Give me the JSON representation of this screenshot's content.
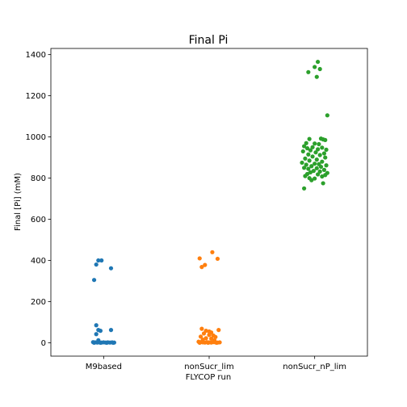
{
  "chart_data": {
    "type": "scatter",
    "title": "Final Pi",
    "xlabel": "FLYCOP run",
    "ylabel": "Final [Pi] (mM)",
    "categories": [
      "M9based",
      "nonSucr_lim",
      "nonSucr_nP_lim"
    ],
    "ylim": [
      -65,
      1430
    ],
    "yticks": [
      0,
      200,
      400,
      600,
      800,
      1000,
      1200,
      1400
    ],
    "grid": false,
    "legend": "none",
    "series": [
      {
        "color": "#1f77b4",
        "points": [
          [
            -0.05,
            400
          ],
          [
            -0.02,
            400
          ],
          [
            -0.07,
            380
          ],
          [
            0.07,
            362
          ],
          [
            -0.09,
            305
          ],
          [
            -0.07,
            85
          ],
          [
            -0.05,
            62
          ],
          [
            -0.03,
            58
          ],
          [
            0.07,
            62
          ],
          [
            -0.07,
            42
          ],
          [
            -0.05,
            12
          ],
          [
            -0.1,
            3
          ],
          [
            -0.08,
            2
          ],
          [
            -0.06,
            1
          ],
          [
            -0.04,
            2
          ],
          [
            -0.02,
            1
          ],
          [
            0.0,
            2
          ],
          [
            0.02,
            1
          ],
          [
            0.04,
            2
          ],
          [
            0.06,
            1
          ],
          [
            0.08,
            2
          ],
          [
            0.1,
            1
          ],
          [
            -0.09,
            0
          ],
          [
            -0.03,
            0
          ],
          [
            0.03,
            0
          ],
          [
            0.09,
            0
          ]
        ]
      },
      {
        "color": "#ff7f0e",
        "points": [
          [
            0.03,
            440
          ],
          [
            -0.09,
            410
          ],
          [
            0.08,
            408
          ],
          [
            -0.04,
            378
          ],
          [
            -0.07,
            368
          ],
          [
            -0.07,
            68
          ],
          [
            -0.03,
            58
          ],
          [
            0.0,
            55
          ],
          [
            0.02,
            50
          ],
          [
            0.09,
            62
          ],
          [
            -0.05,
            45
          ],
          [
            0.0,
            38
          ],
          [
            0.04,
            35
          ],
          [
            -0.08,
            30
          ],
          [
            0.06,
            28
          ],
          [
            -0.03,
            22
          ],
          [
            0.02,
            20
          ],
          [
            -0.06,
            15
          ],
          [
            0.05,
            12
          ],
          [
            -0.1,
            5
          ],
          [
            -0.08,
            3
          ],
          [
            -0.06,
            2
          ],
          [
            -0.04,
            1
          ],
          [
            -0.02,
            3
          ],
          [
            0.0,
            2
          ],
          [
            0.02,
            1
          ],
          [
            0.04,
            3
          ],
          [
            0.06,
            2
          ],
          [
            0.08,
            1
          ],
          [
            0.1,
            2
          ],
          [
            -0.09,
            0
          ],
          [
            -0.01,
            0
          ],
          [
            0.07,
            0
          ]
        ]
      },
      {
        "color": "#2ca02c",
        "points": [
          [
            0.03,
            1365
          ],
          [
            0.0,
            1340
          ],
          [
            -0.06,
            1315
          ],
          [
            0.05,
            1330
          ],
          [
            0.02,
            1292
          ],
          [
            0.12,
            1105
          ],
          [
            -0.05,
            990
          ],
          [
            0.06,
            992
          ],
          [
            0.08,
            988
          ],
          [
            0.1,
            985
          ],
          [
            -0.08,
            970
          ],
          [
            0.0,
            968
          ],
          [
            0.04,
            965
          ],
          [
            -0.1,
            955
          ],
          [
            -0.02,
            950
          ],
          [
            0.07,
            948
          ],
          [
            -0.07,
            945
          ],
          [
            0.03,
            940
          ],
          [
            0.11,
            938
          ],
          [
            -0.04,
            935
          ],
          [
            -0.11,
            930
          ],
          [
            0.01,
            925
          ],
          [
            0.09,
            920
          ],
          [
            -0.06,
            915
          ],
          [
            0.05,
            912
          ],
          [
            -0.02,
            905
          ],
          [
            0.1,
            900
          ],
          [
            -0.09,
            895
          ],
          [
            0.02,
            890
          ],
          [
            -0.05,
            885
          ],
          [
            0.07,
            880
          ],
          [
            -0.12,
            875
          ],
          [
            0.0,
            870
          ],
          [
            0.04,
            868
          ],
          [
            -0.08,
            865
          ],
          [
            0.11,
            862
          ],
          [
            -0.03,
            858
          ],
          [
            0.06,
            855
          ],
          [
            -0.1,
            850
          ],
          [
            0.02,
            848
          ],
          [
            -0.06,
            845
          ],
          [
            0.09,
            840
          ],
          [
            -0.01,
            835
          ],
          [
            0.05,
            832
          ],
          [
            -0.04,
            828
          ],
          [
            0.12,
            825
          ],
          [
            -0.07,
            820
          ],
          [
            0.03,
            818
          ],
          [
            0.1,
            815
          ],
          [
            -0.09,
            810
          ],
          [
            0.07,
            808
          ],
          [
            -0.05,
            800
          ],
          [
            0.0,
            798
          ],
          [
            -0.03,
            790
          ],
          [
            0.08,
            775
          ],
          [
            -0.1,
            750
          ]
        ]
      }
    ]
  }
}
